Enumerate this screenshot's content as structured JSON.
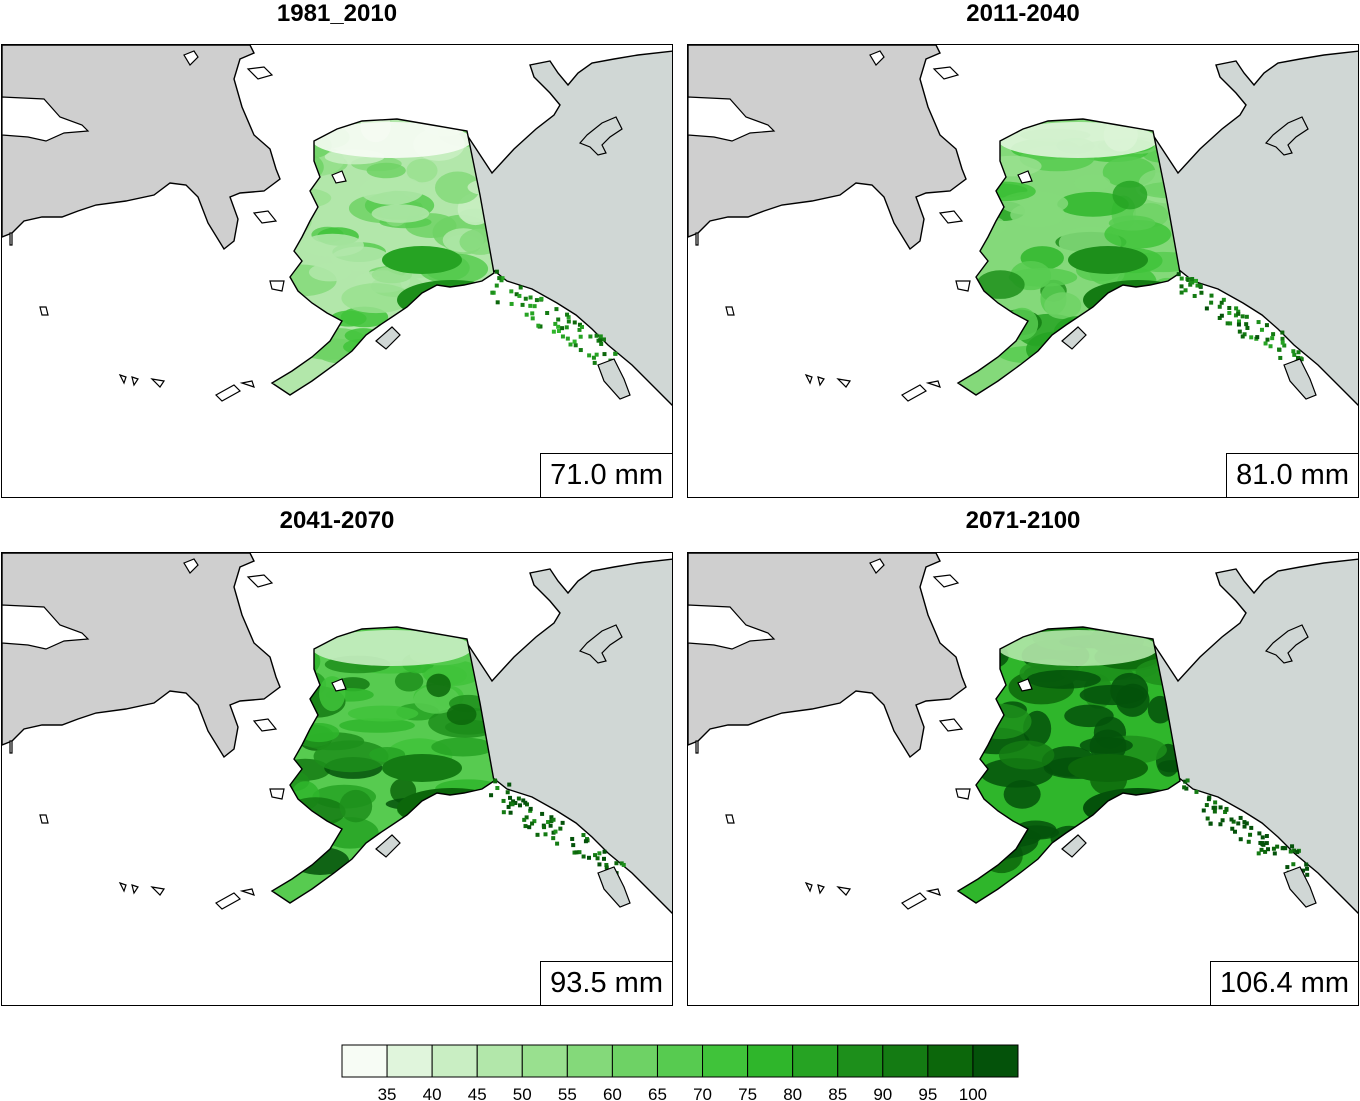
{
  "panels": [
    {
      "title": "1981_2010",
      "mean_value": "71.0 mm",
      "intensity": 0
    },
    {
      "title": "2011-2040",
      "mean_value": "81.0 mm",
      "intensity": 1
    },
    {
      "title": "2041-2070",
      "mean_value": "93.5 mm",
      "intensity": 2
    },
    {
      "title": "2071-2100",
      "mean_value": "106.4 mm",
      "intensity": 3
    }
  ],
  "legend": {
    "ticks": [
      "35",
      "40",
      "45",
      "50",
      "55",
      "60",
      "65",
      "70",
      "75",
      "80",
      "85",
      "90",
      "95",
      "100"
    ],
    "colors": [
      "#f7fcf5",
      "#e0f5dc",
      "#c9eec3",
      "#b2e7aa",
      "#99e08f",
      "#84d97a",
      "#6ed265",
      "#57cb50",
      "#40c33a",
      "#2fb62b",
      "#26a323",
      "#1d8f1b",
      "#147b13",
      "#0c670b",
      "#04520a"
    ]
  },
  "colors": {
    "land_gray": "#cfcfcf",
    "canada_gray": "#d0d7d5",
    "outline": "#000000"
  }
}
